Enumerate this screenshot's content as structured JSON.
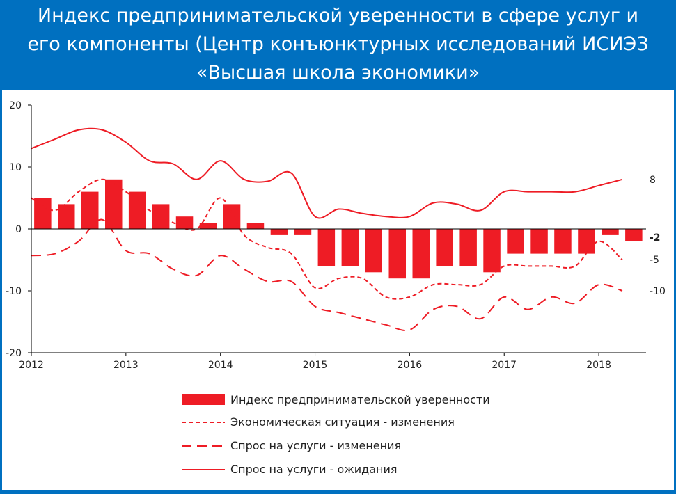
{
  "header": {
    "title_lines": [
      "Индекс предпринимательской уверенности в сфере услуг и",
      "его компоненты (Центр конъюнктурных исследований ИСИЭЗ",
      "«Высшая школа экономики»"
    ]
  },
  "colors": {
    "frame": "#0070c0",
    "series": "#ee1c25",
    "axis": "#000000"
  },
  "chart_data": {
    "type": "bar",
    "ylim": [
      -20,
      20
    ],
    "yticks": [
      20,
      10,
      0,
      -10,
      -20
    ],
    "ytick_labels": [
      "20",
      "10",
      "0",
      "-10",
      "-20"
    ],
    "xlim": [
      2012,
      2018.5
    ],
    "xticks": [
      2012,
      2013,
      2014,
      2015,
      2016,
      2017,
      2018
    ],
    "xtick_labels": [
      "2012",
      "2013",
      "2014",
      "2015",
      "2016",
      "2017",
      "2018"
    ],
    "grid": false,
    "legend_position": "bottom",
    "bar_series": {
      "name": "Индекс предпринимательской  уверенности",
      "x": [
        2012.12,
        2012.37,
        2012.62,
        2012.87,
        2013.12,
        2013.37,
        2013.62,
        2013.87,
        2014.12,
        2014.37,
        2014.62,
        2014.87,
        2015.12,
        2015.37,
        2015.62,
        2015.87,
        2016.12,
        2016.37,
        2016.62,
        2016.87,
        2017.12,
        2017.37,
        2017.62,
        2017.87,
        2018.12,
        2018.37
      ],
      "values": [
        5,
        4,
        6,
        8,
        6,
        4,
        2,
        1,
        4,
        1,
        -1,
        -1,
        -6,
        -6,
        -7,
        -8,
        -8,
        -6,
        -6,
        -7,
        -4,
        -4,
        -4,
        -4,
        -1,
        -2
      ]
    },
    "line_series": [
      {
        "name": "Экономическая ситуация  - изменения",
        "style": "short-dash",
        "x": [
          2012.0,
          2012.25,
          2012.5,
          2012.75,
          2013.0,
          2013.25,
          2013.5,
          2013.75,
          2014.0,
          2014.25,
          2014.5,
          2014.75,
          2015.0,
          2015.25,
          2015.5,
          2015.75,
          2016.0,
          2016.25,
          2016.5,
          2016.75,
          2017.0,
          2017.25,
          2017.5,
          2017.75,
          2018.0,
          2018.25
        ],
        "values": [
          5,
          3,
          6,
          8,
          6,
          3,
          1,
          0,
          5,
          -1,
          -3,
          -4,
          -9.5,
          -8,
          -8,
          -11,
          -11,
          -9,
          -9,
          -9,
          -6,
          -6,
          -6,
          -6,
          -2,
          -5
        ]
      },
      {
        "name": "Спрос на услуги - изменения",
        "style": "long-dash",
        "x": [
          2012.0,
          2012.25,
          2012.5,
          2012.75,
          2013.0,
          2013.25,
          2013.5,
          2013.75,
          2014.0,
          2014.25,
          2014.5,
          2014.75,
          2015.0,
          2015.25,
          2015.5,
          2015.75,
          2016.0,
          2016.25,
          2016.5,
          2016.75,
          2017.0,
          2017.25,
          2017.5,
          2017.75,
          2018.0,
          2018.25
        ],
        "values": [
          -4.3,
          -4,
          -2,
          1.5,
          -3.5,
          -4,
          -6.5,
          -7.5,
          -4.3,
          -6.5,
          -8.5,
          -8.5,
          -12.5,
          -13.5,
          -14.5,
          -15.5,
          -16.3,
          -13,
          -12.5,
          -14.5,
          -11,
          -13,
          -11,
          -12,
          -9,
          -10
        ]
      },
      {
        "name": "Спрос на услуги - ожидания",
        "style": "solid",
        "x": [
          2012.0,
          2012.25,
          2012.5,
          2012.75,
          2013.0,
          2013.25,
          2013.5,
          2013.75,
          2014.0,
          2014.25,
          2014.5,
          2014.75,
          2015.0,
          2015.25,
          2015.5,
          2015.75,
          2016.0,
          2016.25,
          2016.5,
          2016.75,
          2017.0,
          2017.25,
          2017.5,
          2017.75,
          2018.0,
          2018.25
        ],
        "values": [
          13,
          14.5,
          16,
          16,
          14,
          11,
          10.5,
          8,
          11,
          8,
          7.7,
          9,
          2,
          3.2,
          2.5,
          2,
          2,
          4.2,
          4,
          3,
          6,
          6,
          6,
          6,
          7,
          8
        ]
      }
    ],
    "end_labels": [
      "8",
      "-2",
      "-5",
      "-10"
    ]
  }
}
